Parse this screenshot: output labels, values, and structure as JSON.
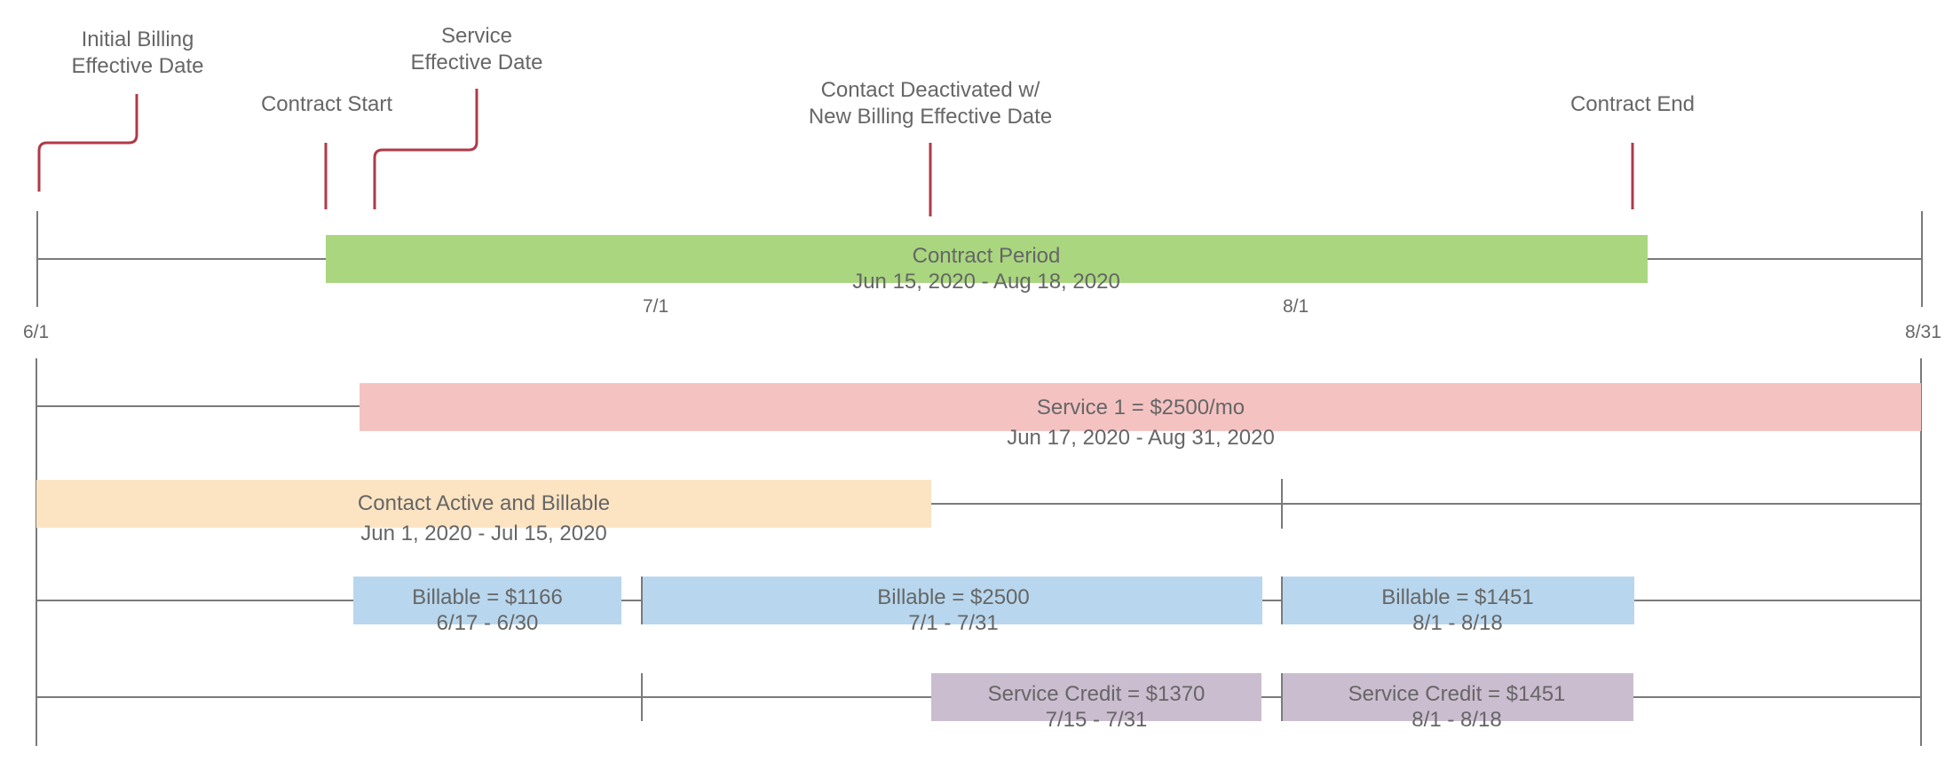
{
  "colors": {
    "contract": "#a9d67f",
    "service": "#f5c2c2",
    "active": "#fce4c3",
    "billable": "#b8d7ee",
    "credit": "#cbbdd0",
    "marker": "#b03a48",
    "axis": "#7a7a7a"
  },
  "markers": {
    "initial_billing": [
      "Initial Billing",
      "Effective Date"
    ],
    "contract_start": [
      "Contract Start"
    ],
    "service_effective": [
      "Service",
      "Effective Date"
    ],
    "deactivated": [
      "Contact Deactivated w/",
      "New Billing Effective Date"
    ],
    "contract_end": [
      "Contract End"
    ]
  },
  "ticks": {
    "start": "6/1",
    "jul": "7/1",
    "aug": "8/1",
    "end": "8/31"
  },
  "rows": {
    "contract": {
      "label": "Contract Period",
      "dates": "Jun 15, 2020 - Aug 18, 2020"
    },
    "service": {
      "label": "Service 1 = $2500/mo",
      "dates": "Jun 17, 2020 - Aug 31, 2020"
    },
    "active": {
      "label": "Contact Active and Billable",
      "dates": "Jun 1, 2020 - Jul 15, 2020"
    },
    "billable": [
      {
        "label": "Billable = $1166",
        "dates": "6/17 - 6/30"
      },
      {
        "label": "Billable = $2500",
        "dates": "7/1 - 7/31"
      },
      {
        "label": "Billable = $1451",
        "dates": "8/1 - 8/18"
      }
    ],
    "credit": [
      {
        "label": "Service Credit = $1370",
        "dates": "7/15 - 7/31"
      },
      {
        "label": "Service Credit = $1451",
        "dates": "8/1 - 8/18"
      }
    ]
  }
}
